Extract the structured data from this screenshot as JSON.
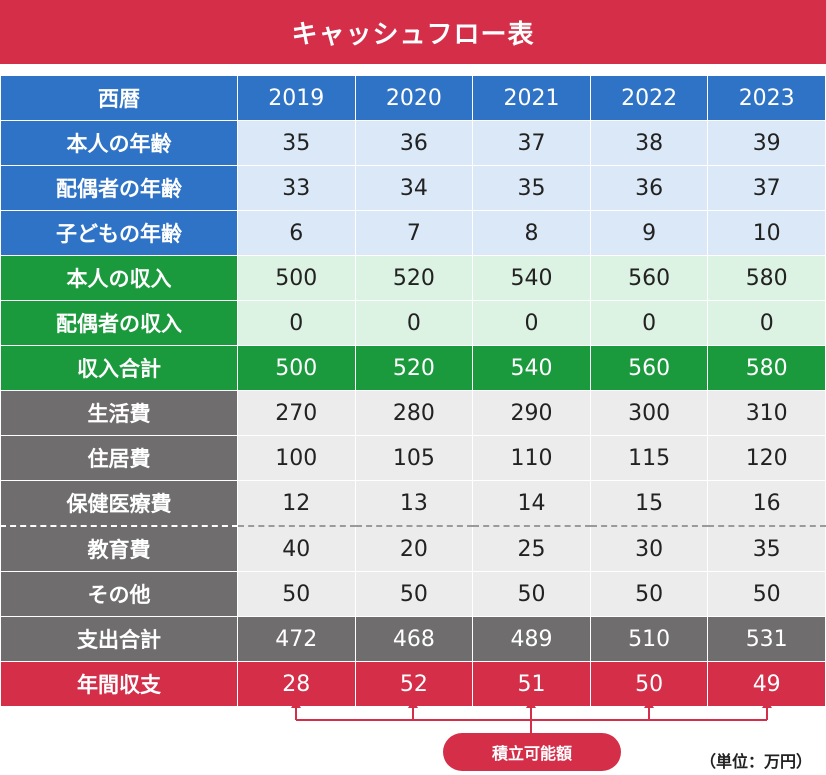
{
  "title": "キャッシュフロー表",
  "table": {
    "header_label": "西暦",
    "years": [
      "2019",
      "2020",
      "2021",
      "2022",
      "2023"
    ],
    "rows": [
      {
        "label": "本人の年齢",
        "values": [
          "35",
          "36",
          "37",
          "38",
          "39"
        ]
      },
      {
        "label": "配偶者の年齢",
        "values": [
          "33",
          "34",
          "35",
          "36",
          "37"
        ]
      },
      {
        "label": "子どもの年齢",
        "values": [
          "6",
          "7",
          "8",
          "9",
          "10"
        ]
      },
      {
        "label": "本人の収入",
        "values": [
          "500",
          "520",
          "540",
          "560",
          "580"
        ]
      },
      {
        "label": "配偶者の収入",
        "values": [
          "0",
          "0",
          "0",
          "0",
          "0"
        ]
      },
      {
        "label": "収入合計",
        "values": [
          "500",
          "520",
          "540",
          "560",
          "580"
        ]
      },
      {
        "label": "生活費",
        "values": [
          "270",
          "280",
          "290",
          "300",
          "310"
        ]
      },
      {
        "label": "住居費",
        "values": [
          "100",
          "105",
          "110",
          "115",
          "120"
        ]
      },
      {
        "label": "保健医療費",
        "values": [
          "12",
          "13",
          "14",
          "15",
          "16"
        ]
      },
      {
        "label": "教育費",
        "values": [
          "40",
          "20",
          "25",
          "30",
          "35"
        ]
      },
      {
        "label": "その他",
        "values": [
          "50",
          "50",
          "50",
          "50",
          "50"
        ]
      },
      {
        "label": "支出合計",
        "values": [
          "472",
          "468",
          "489",
          "510",
          "531"
        ]
      },
      {
        "label": "年間収支",
        "values": [
          "28",
          "52",
          "51",
          "50",
          "49"
        ]
      }
    ]
  },
  "savings_label": "積立可能額",
  "unit_note": "（単位：万円）",
  "colors": {
    "title_red": "#d42e49",
    "blue": "#2f73c6",
    "blue_light": "#dae8f8",
    "green": "#1a9a3c",
    "green_light": "#dcf2e2",
    "grey": "#6f6d6d",
    "grey_light": "#ececec"
  }
}
